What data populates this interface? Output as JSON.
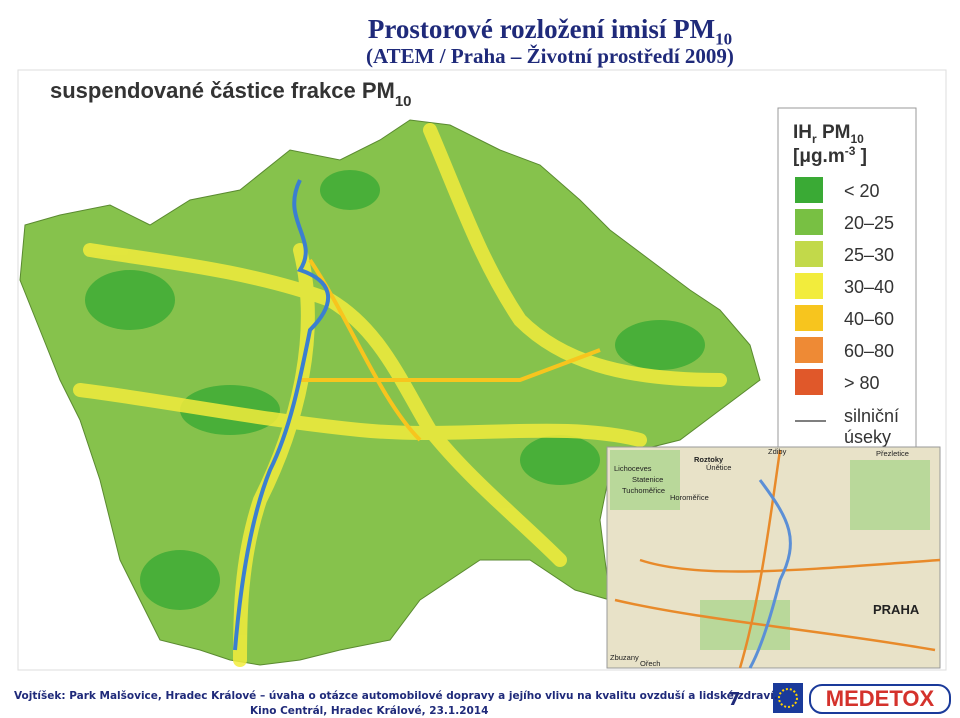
{
  "header": {
    "title": "Prostorové rozložení imisí PM",
    "title_sub": "10",
    "subtitle": "(ATEM / Praha – Životní prostředí 2009)"
  },
  "map": {
    "title": "suspendované částice frakce PM",
    "title_sub": "10"
  },
  "legend": {
    "title_main": "IH",
    "title_r": "r",
    "title_pm": " PM",
    "title_pm_sub": "10",
    "unit_open": "[μg.m",
    "unit_exp": "-3",
    "unit_close": " ]",
    "items": [
      {
        "label": "< 20",
        "color": "#3aaa35"
      },
      {
        "label": "20–25",
        "color": "#78c043"
      },
      {
        "label": "25–30",
        "color": "#c2d94a"
      },
      {
        "label": "30–40",
        "color": "#f2ec3c"
      },
      {
        "label": "40–60",
        "color": "#f7c51e"
      },
      {
        "label": "60–80",
        "color": "#ee8a35"
      },
      {
        "label": "> 80",
        "color": "#e0582a"
      }
    ],
    "road_label_1": "silniční",
    "road_label_2": "úseky"
  },
  "inset": {
    "labels": [
      "Roztoky",
      "Únětice",
      "Lichoceves",
      "Statenice",
      "Tuchoměřice",
      "Horoměřice",
      "Zdiby",
      "Přezletice",
      "PRAHA",
      "Zbuzany",
      "Ořech"
    ]
  },
  "footer": {
    "line1": "Vojtíšek: Park Malšovice, Hradec Králové – úvaha o otázce automobilové dopravy a jejího vlivu na kvalitu ovzduší a lidské zdraví.",
    "line2": "Kino Centrál, Hradec Králové, 23.1.2014",
    "page": "7",
    "logo": "MEDETOX"
  }
}
